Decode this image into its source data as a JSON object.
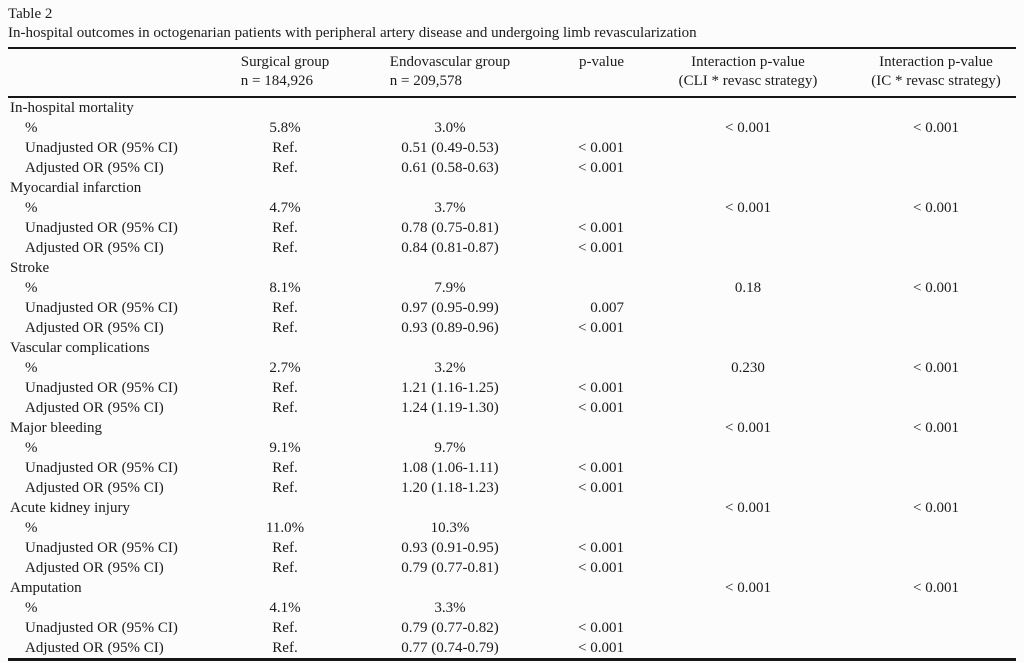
{
  "table": {
    "label": "Table 2",
    "caption": "In-hospital outcomes in octogenarian patients with peripheral artery disease and undergoing limb revascularization"
  },
  "header": {
    "surgical": {
      "line1": "Surgical group",
      "line2": "n = 184,926"
    },
    "endovascular": {
      "line1": "Endovascular group",
      "line2": "n = 209,578"
    },
    "p_value": "p-value",
    "interaction_cli": {
      "line1": "Interaction p-value",
      "line2": "(CLI * revasc strategy)"
    },
    "interaction_ic": {
      "line1": "Interaction p-value",
      "line2": "(IC * revasc strategy)"
    }
  },
  "rows": [
    {
      "type": "section",
      "label": "In-hospital mortality",
      "surgical": "",
      "endovascular": "",
      "p": "",
      "cli": "",
      "ic": ""
    },
    {
      "type": "sub",
      "label": "%",
      "surgical": "5.8%",
      "endovascular": "3.0%",
      "p": "",
      "cli": "< 0.001",
      "ic": "< 0.001"
    },
    {
      "type": "sub",
      "label": "Unadjusted OR (95% CI)",
      "surgical": "Ref.",
      "endovascular": "0.51 (0.49-0.53)",
      "p": "< 0.001",
      "cli": "",
      "ic": ""
    },
    {
      "type": "sub",
      "label": "Adjusted OR (95% CI)",
      "surgical": "Ref.",
      "endovascular": "0.61 (0.58-0.63)",
      "p": "< 0.001",
      "cli": "",
      "ic": ""
    },
    {
      "type": "section",
      "label": "Myocardial infarction",
      "surgical": "",
      "endovascular": "",
      "p": "",
      "cli": "",
      "ic": ""
    },
    {
      "type": "sub",
      "label": "%",
      "surgical": "4.7%",
      "endovascular": "3.7%",
      "p": "",
      "cli": "< 0.001",
      "ic": "< 0.001"
    },
    {
      "type": "sub",
      "label": "Unadjusted OR (95% CI)",
      "surgical": "Ref.",
      "endovascular": "0.78 (0.75-0.81)",
      "p": "< 0.001",
      "cli": "",
      "ic": ""
    },
    {
      "type": "sub",
      "label": "Adjusted OR (95% CI)",
      "surgical": "Ref.",
      "endovascular": "0.84 (0.81-0.87)",
      "p": "< 0.001",
      "cli": "",
      "ic": ""
    },
    {
      "type": "section",
      "label": "Stroke",
      "surgical": "",
      "endovascular": "",
      "p": "",
      "cli": "",
      "ic": ""
    },
    {
      "type": "sub",
      "label": "%",
      "surgical": "8.1%",
      "endovascular": "7.9%",
      "p": "",
      "cli": "0.18",
      "ic": "< 0.001"
    },
    {
      "type": "sub",
      "label": "Unadjusted OR (95% CI)",
      "surgical": "Ref.",
      "endovascular": "0.97 (0.95-0.99)",
      "p": "0.007",
      "cli": "",
      "ic": ""
    },
    {
      "type": "sub",
      "label": "Adjusted OR (95% CI)",
      "surgical": "Ref.",
      "endovascular": "0.93 (0.89-0.96)",
      "p": "< 0.001",
      "cli": "",
      "ic": ""
    },
    {
      "type": "section",
      "label": "Vascular complications",
      "surgical": "",
      "endovascular": "",
      "p": "",
      "cli": "",
      "ic": ""
    },
    {
      "type": "sub",
      "label": "%",
      "surgical": "2.7%",
      "endovascular": "3.2%",
      "p": "",
      "cli": "0.230",
      "ic": "< 0.001"
    },
    {
      "type": "sub",
      "label": "Unadjusted OR (95% CI)",
      "surgical": "Ref.",
      "endovascular": "1.21 (1.16-1.25)",
      "p": "< 0.001",
      "cli": "",
      "ic": ""
    },
    {
      "type": "sub",
      "label": "Adjusted OR (95% CI)",
      "surgical": "Ref.",
      "endovascular": "1.24 (1.19-1.30)",
      "p": "< 0.001",
      "cli": "",
      "ic": ""
    },
    {
      "type": "section",
      "label": "Major bleeding",
      "surgical": "",
      "endovascular": "",
      "p": "",
      "cli": "< 0.001",
      "ic": "< 0.001"
    },
    {
      "type": "sub",
      "label": "%",
      "surgical": "9.1%",
      "endovascular": "9.7%",
      "p": "",
      "cli": "",
      "ic": ""
    },
    {
      "type": "sub",
      "label": "Unadjusted OR (95% CI)",
      "surgical": "Ref.",
      "endovascular": "1.08 (1.06-1.11)",
      "p": "< 0.001",
      "cli": "",
      "ic": ""
    },
    {
      "type": "sub",
      "label": "Adjusted OR (95% CI)",
      "surgical": "Ref.",
      "endovascular": "1.20 (1.18-1.23)",
      "p": "< 0.001",
      "cli": "",
      "ic": ""
    },
    {
      "type": "section",
      "label": "Acute kidney injury",
      "surgical": "",
      "endovascular": "",
      "p": "",
      "cli": "< 0.001",
      "ic": "< 0.001"
    },
    {
      "type": "sub",
      "label": "%",
      "surgical": "11.0%",
      "endovascular": "10.3%",
      "p": "",
      "cli": "",
      "ic": ""
    },
    {
      "type": "sub",
      "label": "Unadjusted OR (95% CI)",
      "surgical": "Ref.",
      "endovascular": "0.93 (0.91-0.95)",
      "p": "< 0.001",
      "cli": "",
      "ic": ""
    },
    {
      "type": "sub",
      "label": "Adjusted OR (95% CI)",
      "surgical": "Ref.",
      "endovascular": "0.79 (0.77-0.81)",
      "p": "< 0.001",
      "cli": "",
      "ic": ""
    },
    {
      "type": "section",
      "label": "Amputation",
      "surgical": "",
      "endovascular": "",
      "p": "",
      "cli": "< 0.001",
      "ic": "< 0.001"
    },
    {
      "type": "sub",
      "label": "%",
      "surgical": "4.1%",
      "endovascular": "3.3%",
      "p": "",
      "cli": "",
      "ic": ""
    },
    {
      "type": "sub",
      "label": "Unadjusted OR (95% CI)",
      "surgical": "Ref.",
      "endovascular": "0.79 (0.77-0.82)",
      "p": "< 0.001",
      "cli": "",
      "ic": ""
    },
    {
      "type": "sub",
      "label": "Adjusted OR (95% CI)",
      "surgical": "Ref.",
      "endovascular": "0.77 (0.74-0.79)",
      "p": "< 0.001",
      "cli": "",
      "ic": ""
    }
  ]
}
